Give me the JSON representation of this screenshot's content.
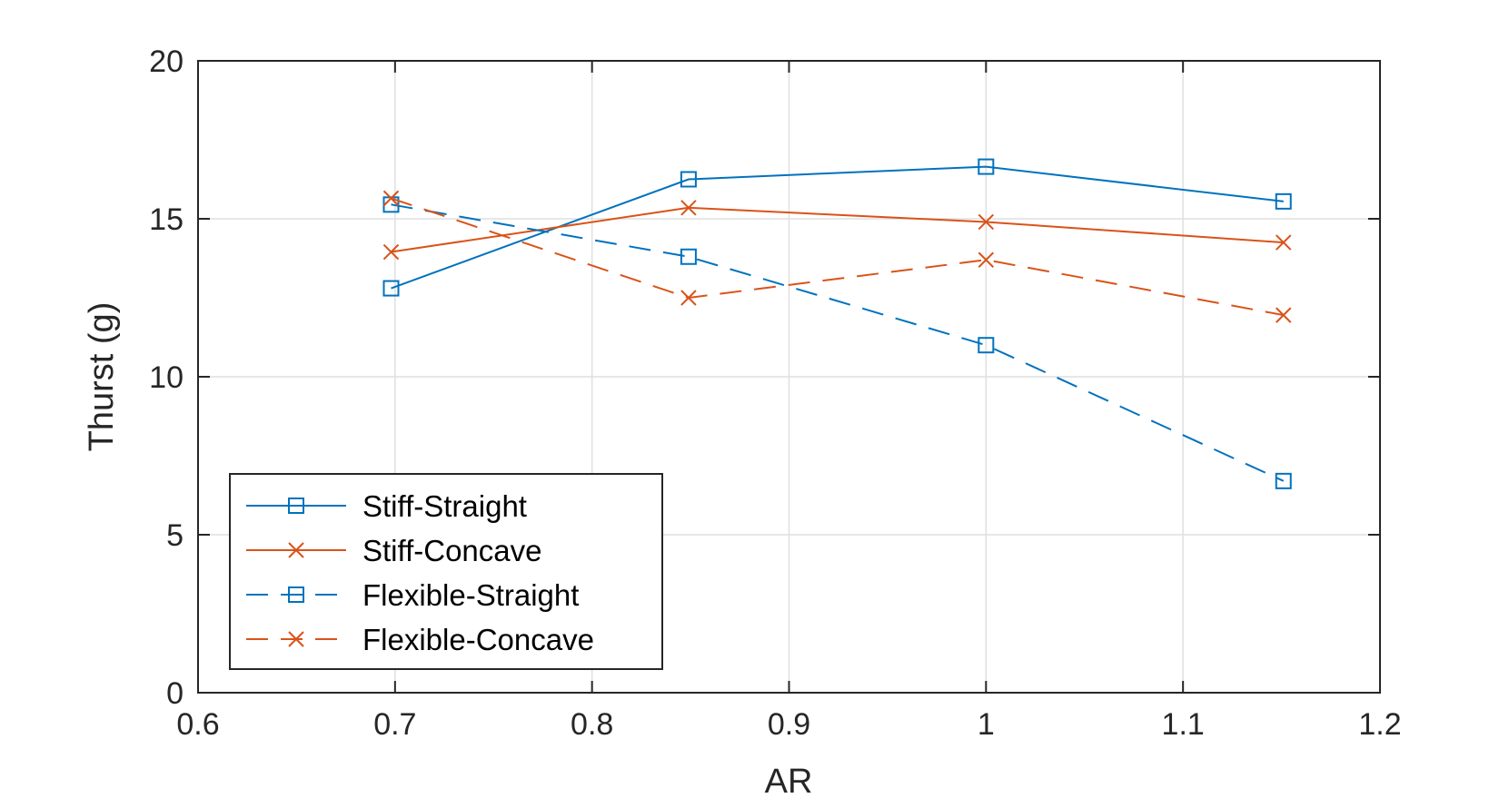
{
  "chart_data": {
    "type": "line",
    "title": "",
    "xlabel": "AR",
    "ylabel": "Thurst (g)",
    "xlim": [
      0.6,
      1.2
    ],
    "ylim": [
      0,
      20
    ],
    "xticks": [
      0.6,
      0.7,
      0.8,
      0.9,
      1.0,
      1.1,
      1.2
    ],
    "xtick_labels": [
      "0.6",
      "0.7",
      "0.8",
      "0.9",
      "1",
      "1.1",
      "1.2"
    ],
    "yticks": [
      0,
      5,
      10,
      15,
      20
    ],
    "ytick_labels": [
      "0",
      "5",
      "10",
      "15",
      "20"
    ],
    "grid": true,
    "legend_position": "bottom-left",
    "x": [
      0.698,
      0.849,
      1.0,
      1.151
    ],
    "series": [
      {
        "name": "Stiff-Straight",
        "values": [
          12.8,
          16.25,
          16.65,
          15.55
        ],
        "color": "#0072BD",
        "marker": "square",
        "dashed": false
      },
      {
        "name": "Stiff-Concave",
        "values": [
          13.95,
          15.35,
          14.9,
          14.25
        ],
        "color": "#D95319",
        "marker": "x",
        "dashed": false
      },
      {
        "name": "Flexible-Straight",
        "values": [
          15.45,
          13.8,
          11.0,
          6.7
        ],
        "color": "#0072BD",
        "marker": "square",
        "dashed": true
      },
      {
        "name": "Flexible-Concave",
        "values": [
          15.65,
          12.5,
          13.7,
          11.95
        ],
        "color": "#D95319",
        "marker": "x",
        "dashed": true
      }
    ]
  }
}
